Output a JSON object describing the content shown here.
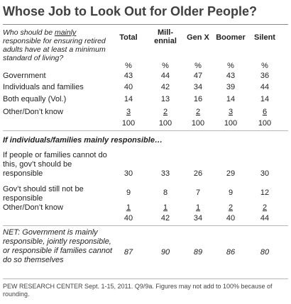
{
  "title": "Whose Job to Look Out for Older People?",
  "question": {
    "pre": "Who should be ",
    "underlined": "mainly",
    "post": " responsible for ensuring retired adults have at least a minimum standard of living?"
  },
  "chart_data": {
    "type": "table",
    "columns": [
      "Total",
      "Mill-\nennial",
      "Gen X",
      "Boomer",
      "Silent"
    ],
    "section1": {
      "pct_row": [
        "%",
        "%",
        "%",
        "%",
        "%"
      ],
      "rows": [
        {
          "label": "Government",
          "values": [
            "43",
            "44",
            "47",
            "43",
            "36"
          ]
        },
        {
          "label": "Individuals and families",
          "values": [
            "40",
            "42",
            "34",
            "39",
            "44"
          ]
        },
        {
          "label": "Both equally (Vol.)",
          "values": [
            "14",
            "13",
            "16",
            "14",
            "14"
          ]
        },
        {
          "label": "Other/Don’t know",
          "values": [
            "3",
            "2",
            "2",
            "3",
            "6"
          ]
        }
      ],
      "totals": [
        "100",
        "100",
        "100",
        "100",
        "100"
      ]
    },
    "section2": {
      "heading": "If individuals/families mainly responsible…",
      "rows": [
        {
          "label": "If people or families cannot do this, gov’t should be responsible",
          "values": [
            "30",
            "33",
            "26",
            "29",
            "30"
          ]
        },
        {
          "label": "Gov’t should still not be responsible",
          "values": [
            "9",
            "8",
            "7",
            "9",
            "12"
          ]
        },
        {
          "label": "Other/Don’t know",
          "values": [
            "1",
            "1",
            "1",
            "2",
            "2"
          ]
        }
      ],
      "totals": [
        "40",
        "42",
        "34",
        "40",
        "44"
      ]
    },
    "net": {
      "label": "NET: Government is mainly responsible, jointly responsible, or responsible if families cannot do so themselves",
      "values": [
        "87",
        "90",
        "89",
        "86",
        "80"
      ]
    }
  },
  "source_note": "PEW RESEARCH CENTER Sept. 1-15, 2011. Q9/9a. Figures may not add to 100% because of rounding."
}
